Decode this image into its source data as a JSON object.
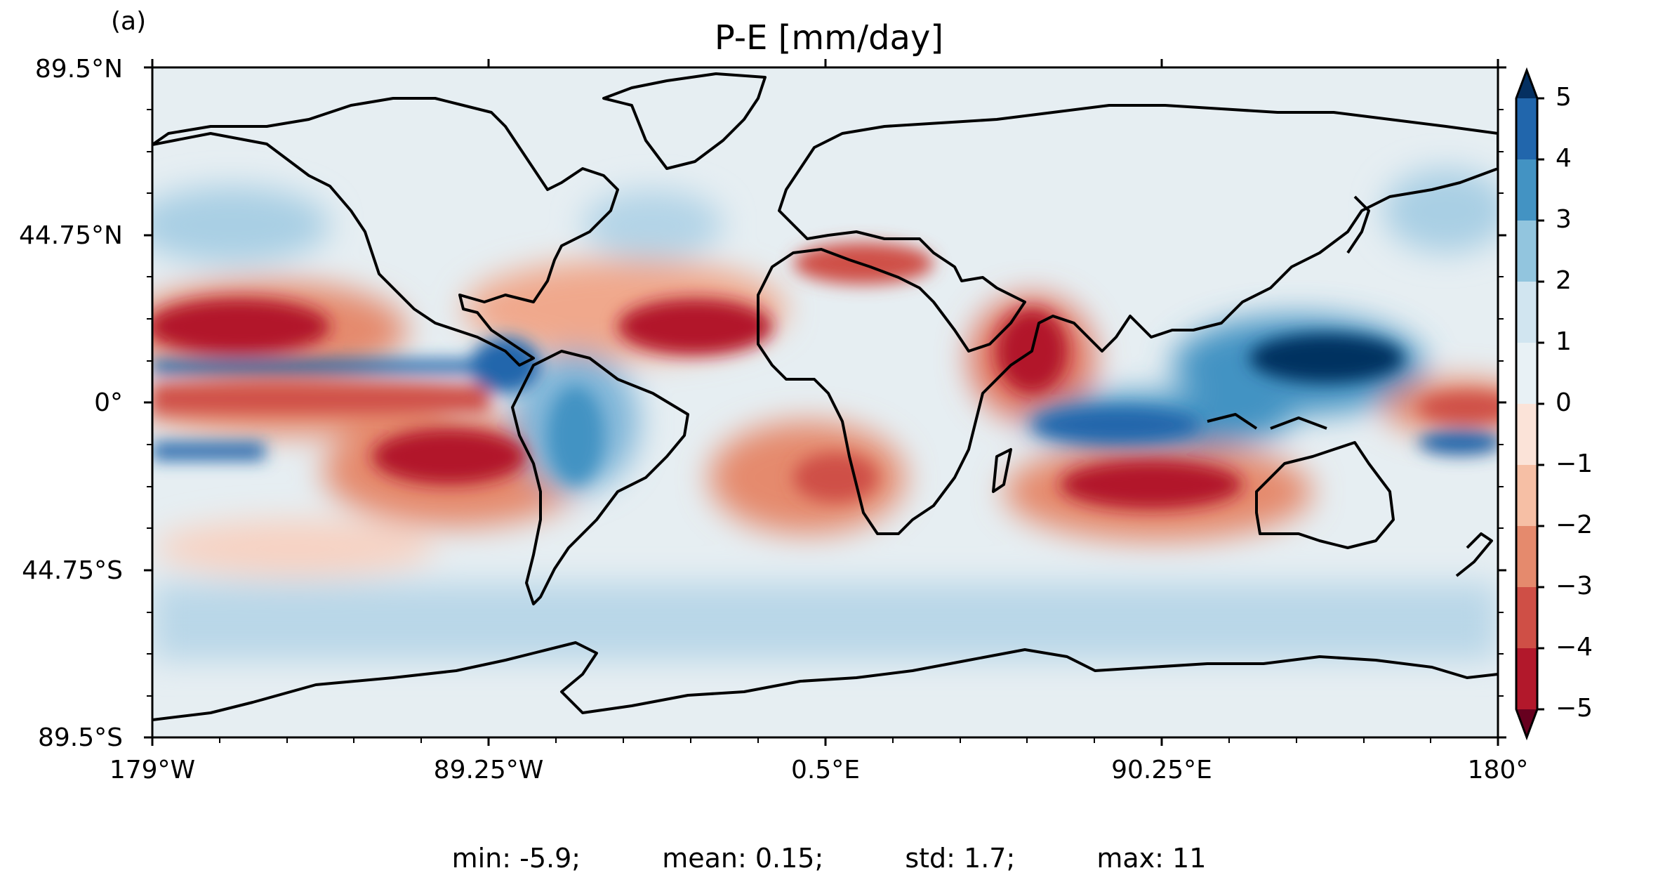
{
  "panel_label": "(a)",
  "title": "P-E [mm/day]",
  "axes": {
    "y_ticks": [
      "89.5°N",
      "44.75°N",
      "0°",
      "44.75°S",
      "89.5°S"
    ],
    "x_ticks": [
      "179°W",
      "89.25°W",
      "0.5°E",
      "90.25°E",
      "180°"
    ]
  },
  "colorbar": {
    "ticks": [
      "5",
      "4",
      "3",
      "2",
      "1",
      "0",
      "−1",
      "−2",
      "−3",
      "−4",
      "−5"
    ],
    "colors": [
      "#053061",
      "#2166ac",
      "#4393c3",
      "#92c5de",
      "#d1e5f0",
      "#e8f1f5",
      "#fbe3d8",
      "#f6bfa5",
      "#e58a6d",
      "#cf4f46",
      "#b2182b",
      "#67001f"
    ],
    "extend": "both"
  },
  "map_background": "#e6eef2",
  "stats": {
    "min": "min: -5.9;",
    "mean": "mean: 0.15;",
    "std": "std: 1.7;",
    "max": "max: 11"
  }
}
